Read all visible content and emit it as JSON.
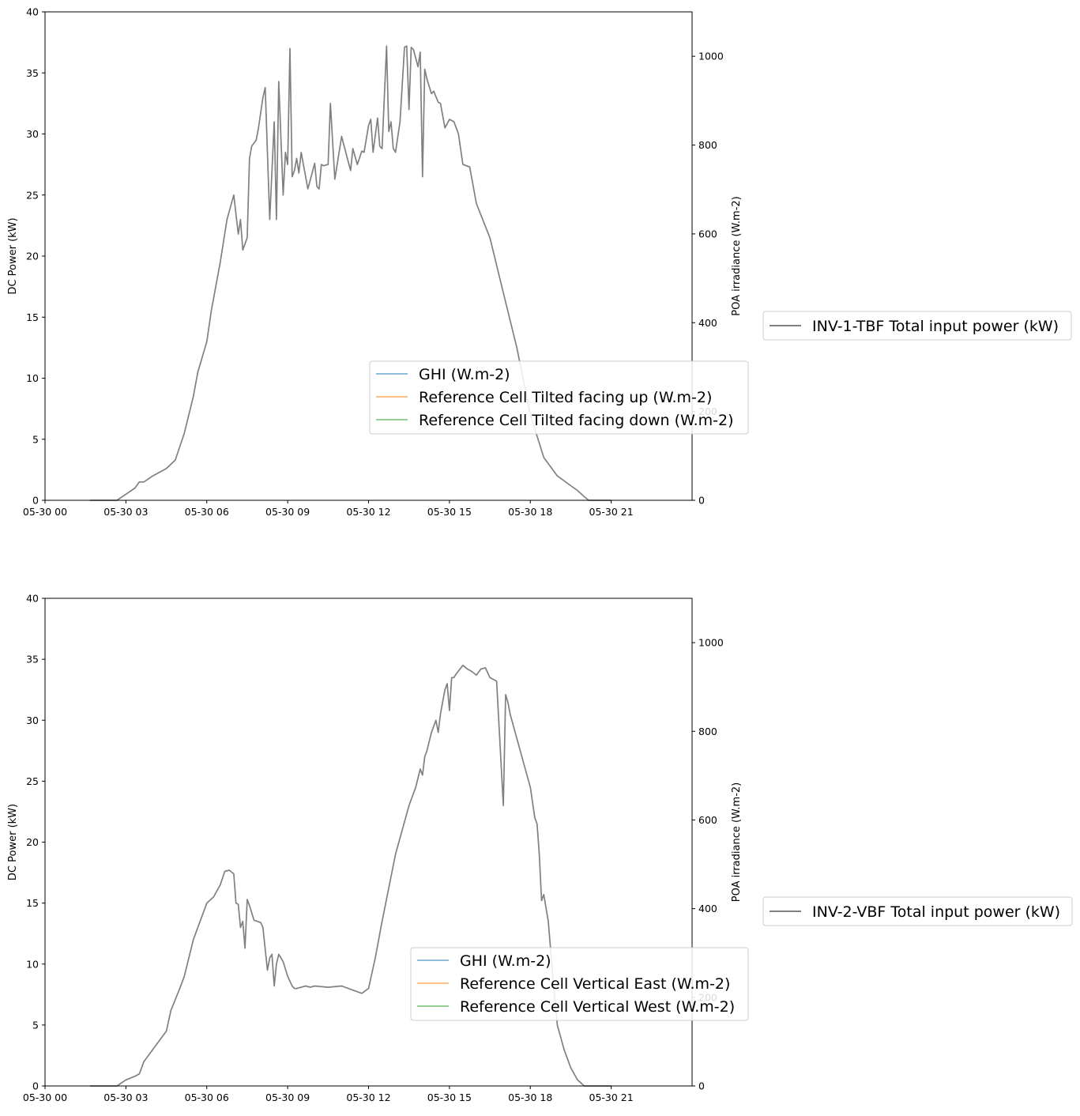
{
  "chart_data": [
    {
      "type": "line",
      "ylabel": "DC Power (kW)",
      "y2label": "POA irradiance (W.m-2)",
      "ylim": [
        0,
        40
      ],
      "y2lim": [
        0,
        1100
      ],
      "xlim": [
        "05-30 00",
        "05-31 00"
      ],
      "x_ticks": [
        "05-30 00",
        "05-30 03",
        "05-30 06",
        "05-30 09",
        "05-30 12",
        "05-30 15",
        "05-30 18",
        "05-30 21"
      ],
      "y_ticks": [
        "0",
        "5",
        "10",
        "15",
        "20",
        "25",
        "30",
        "35",
        "40"
      ],
      "y2_ticks": [
        "0",
        "200",
        "400",
        "600",
        "800",
        "1000"
      ],
      "grid": false,
      "legend_irradiance_placement": "center-right",
      "legend_power_placement": "outside-right",
      "irradiance_series": [
        {
          "name": "GHI (W.m-2)",
          "color": "#1f77b4",
          "values": []
        },
        {
          "name": "Reference Cell Tilted facing up (W.m-2)",
          "color": "#ff7f0e",
          "values": []
        },
        {
          "name": "Reference Cell Tilted facing down (W.m-2)",
          "color": "#2ca02c",
          "values": []
        }
      ],
      "power_series": {
        "name": "INV-1-TBF Total input power (kW)",
        "color": "#808080",
        "x": [
          "05-30 01:40",
          "05-30 02:40",
          "05-30 03:00",
          "05-30 03:20",
          "05-30 03:30",
          "05-30 03:40",
          "05-30 04:00",
          "05-30 04:30",
          "05-30 04:50",
          "05-30 05:10",
          "05-30 05:30",
          "05-30 05:40",
          "05-30 06:00",
          "05-30 06:10",
          "05-30 06:30",
          "05-30 06:45",
          "05-30 07:00",
          "05-30 07:10",
          "05-30 07:15",
          "05-30 07:20",
          "05-30 07:25",
          "05-30 07:30",
          "05-30 07:35",
          "05-30 07:40",
          "05-30 07:50",
          "05-30 07:55",
          "05-30 08:05",
          "05-30 08:10",
          "05-30 08:20",
          "05-30 08:30",
          "05-30 08:35",
          "05-30 08:40",
          "05-30 08:50",
          "05-30 08:55",
          "05-30 09:00",
          "05-30 09:05",
          "05-30 09:10",
          "05-30 09:15",
          "05-30 09:20",
          "05-30 09:25",
          "05-30 09:30",
          "05-30 09:35",
          "05-30 09:45",
          "05-30 10:00",
          "05-30 10:05",
          "05-30 10:10",
          "05-30 10:15",
          "05-30 10:20",
          "05-30 10:30",
          "05-30 10:35",
          "05-30 10:45",
          "05-30 11:00",
          "05-30 11:15",
          "05-30 11:20",
          "05-30 11:25",
          "05-30 11:35",
          "05-30 11:45",
          "05-30 11:50",
          "05-30 12:00",
          "05-30 12:05",
          "05-30 12:10",
          "05-30 12:20",
          "05-30 12:25",
          "05-30 12:30",
          "05-30 12:40",
          "05-30 12:45",
          "05-30 12:50",
          "05-30 12:55",
          "05-30 13:00",
          "05-30 13:10",
          "05-30 13:20",
          "05-30 13:25",
          "05-30 13:30",
          "05-30 13:35",
          "05-30 13:40",
          "05-30 13:50",
          "05-30 13:55",
          "05-30 14:00",
          "05-30 14:05",
          "05-30 14:10",
          "05-30 14:20",
          "05-30 14:25",
          "05-30 14:35",
          "05-30 14:40",
          "05-30 14:50",
          "05-30 15:00",
          "05-30 15:10",
          "05-30 15:20",
          "05-30 15:30",
          "05-30 15:45",
          "05-30 16:00",
          "05-30 16:30",
          "05-30 17:00",
          "05-30 17:30",
          "05-30 18:00",
          "05-30 18:30",
          "05-30 19:00",
          "05-30 19:30",
          "05-30 19:45",
          "05-30 20:00",
          "05-30 20:10",
          "05-30 20:30",
          "05-30 21:00"
        ],
        "values": [
          0,
          0,
          0.5,
          1.0,
          1.5,
          1.5,
          2.0,
          2.6,
          3.3,
          5.5,
          8.5,
          10.5,
          13.0,
          15.5,
          19.5,
          23.0,
          25.0,
          21.8,
          23.0,
          20.5,
          21.0,
          21.5,
          28.0,
          29.0,
          29.5,
          30.5,
          33.0,
          33.8,
          23.0,
          31.0,
          23.0,
          34.3,
          25.0,
          28.5,
          27.5,
          37.0,
          26.5,
          27.0,
          28.0,
          26.8,
          28.5,
          27.5,
          25.5,
          27.6,
          25.7,
          25.5,
          27.5,
          27.4,
          27.5,
          32.5,
          26.3,
          29.8,
          27.7,
          27.0,
          28.8,
          27.5,
          28.6,
          28.5,
          30.7,
          31.2,
          28.5,
          31.3,
          29.0,
          28.8,
          37.2,
          30.2,
          31.0,
          28.8,
          28.5,
          31.0,
          37.1,
          37.2,
          32.0,
          37.1,
          36.9,
          35.5,
          36.7,
          26.5,
          35.3,
          34.5,
          33.3,
          33.5,
          32.6,
          32.5,
          30.5,
          31.2,
          31.0,
          30.0,
          27.5,
          27.3,
          24.3,
          21.5,
          17.0,
          12.5,
          7.0,
          3.5,
          2.0,
          1.2,
          0.8,
          0.3,
          0,
          0,
          0
        ]
      }
    },
    {
      "type": "line",
      "ylabel": "DC Power (kW)",
      "y2label": "POA irradiance (W.m-2)",
      "ylim": [
        0,
        40
      ],
      "y2lim": [
        0,
        1100
      ],
      "xlim": [
        "05-30 00",
        "05-31 00"
      ],
      "x_ticks": [
        "05-30 00",
        "05-30 03",
        "05-30 06",
        "05-30 09",
        "05-30 12",
        "05-30 15",
        "05-30 18",
        "05-30 21"
      ],
      "y_ticks": [
        "0",
        "5",
        "10",
        "15",
        "20",
        "25",
        "30",
        "35",
        "40"
      ],
      "y2_ticks": [
        "0",
        "200",
        "400",
        "600",
        "800",
        "1000"
      ],
      "grid": false,
      "legend_irradiance_placement": "lower-right",
      "legend_power_placement": "outside-right",
      "irradiance_series": [
        {
          "name": "GHI (W.m-2)",
          "color": "#1f77b4",
          "values": []
        },
        {
          "name": "Reference Cell Vertical East (W.m-2)",
          "color": "#ff7f0e",
          "values": []
        },
        {
          "name": "Reference Cell Vertical West (W.m-2)",
          "color": "#2ca02c",
          "values": []
        }
      ],
      "power_series": {
        "name": "INV-2-VBF Total input power (kW)",
        "color": "#808080",
        "x": [
          "05-30 01:40",
          "05-30 02:40",
          "05-30 03:00",
          "05-30 03:20",
          "05-30 03:30",
          "05-30 03:40",
          "05-30 04:00",
          "05-30 04:20",
          "05-30 04:30",
          "05-30 04:40",
          "05-30 05:00",
          "05-30 05:10",
          "05-30 05:30",
          "05-30 05:45",
          "05-30 06:00",
          "05-30 06:15",
          "05-30 06:30",
          "05-30 06:40",
          "05-30 06:50",
          "05-30 07:00",
          "05-30 07:05",
          "05-30 07:10",
          "05-30 07:15",
          "05-30 07:20",
          "05-30 07:25",
          "05-30 07:30",
          "05-30 07:35",
          "05-30 07:45",
          "05-30 08:00",
          "05-30 08:05",
          "05-30 08:15",
          "05-30 08:20",
          "05-30 08:25",
          "05-30 08:30",
          "05-30 08:35",
          "05-30 08:40",
          "05-30 08:50",
          "05-30 09:00",
          "05-30 09:10",
          "05-30 09:15",
          "05-30 09:20",
          "05-30 09:30",
          "05-30 09:40",
          "05-30 09:50",
          "05-30 10:00",
          "05-30 10:30",
          "05-30 11:00",
          "05-30 11:30",
          "05-30 11:45",
          "05-30 12:00",
          "05-30 12:15",
          "05-30 12:30",
          "05-30 13:00",
          "05-30 13:30",
          "05-30 13:45",
          "05-30 13:55",
          "05-30 14:00",
          "05-30 14:05",
          "05-30 14:10",
          "05-30 14:20",
          "05-30 14:30",
          "05-30 14:35",
          "05-30 14:40",
          "05-30 14:45",
          "05-30 14:50",
          "05-30 14:55",
          "05-30 15:00",
          "05-30 15:05",
          "05-30 15:10",
          "05-30 15:15",
          "05-30 15:30",
          "05-30 15:40",
          "05-30 15:50",
          "05-30 16:00",
          "05-30 16:10",
          "05-30 16:20",
          "05-30 16:30",
          "05-30 16:45",
          "05-30 17:00",
          "05-30 17:05",
          "05-30 17:10",
          "05-30 17:15",
          "05-30 17:30",
          "05-30 17:45",
          "05-30 18:00",
          "05-30 18:10",
          "05-30 18:15",
          "05-30 18:20",
          "05-30 18:25",
          "05-30 18:30",
          "05-30 18:40",
          "05-30 18:50",
          "05-30 19:00",
          "05-30 19:15",
          "05-30 19:30",
          "05-30 19:45",
          "05-30 20:00",
          "05-30 20:30",
          "05-30 21:00"
        ],
        "values": [
          0,
          0,
          0.5,
          0.8,
          1.0,
          2.0,
          3.0,
          4.0,
          4.5,
          6.2,
          8.0,
          9.0,
          12.0,
          13.5,
          15.0,
          15.5,
          16.5,
          17.6,
          17.7,
          17.4,
          15.0,
          14.9,
          13.0,
          13.5,
          11.3,
          15.3,
          14.8,
          13.6,
          13.4,
          13.0,
          9.5,
          10.5,
          10.8,
          8.2,
          10.0,
          10.8,
          10.2,
          9.0,
          8.2,
          8.0,
          8.0,
          8.1,
          8.2,
          8.1,
          8.2,
          8.1,
          8.2,
          7.8,
          7.6,
          8.0,
          10.5,
          13.5,
          19.0,
          23.0,
          24.5,
          26.0,
          25.5,
          27.0,
          27.5,
          29.0,
          30.0,
          29.0,
          30.5,
          31.5,
          32.5,
          33.0,
          30.8,
          33.5,
          33.5,
          33.8,
          34.5,
          34.2,
          34.0,
          33.7,
          34.2,
          34.3,
          33.5,
          33.2,
          23.0,
          32.1,
          31.5,
          30.5,
          28.5,
          26.5,
          24.5,
          22.0,
          21.5,
          19.0,
          15.2,
          15.7,
          13.5,
          9.0,
          5.0,
          3.0,
          1.5,
          0.5,
          0,
          0,
          0
        ]
      }
    }
  ]
}
